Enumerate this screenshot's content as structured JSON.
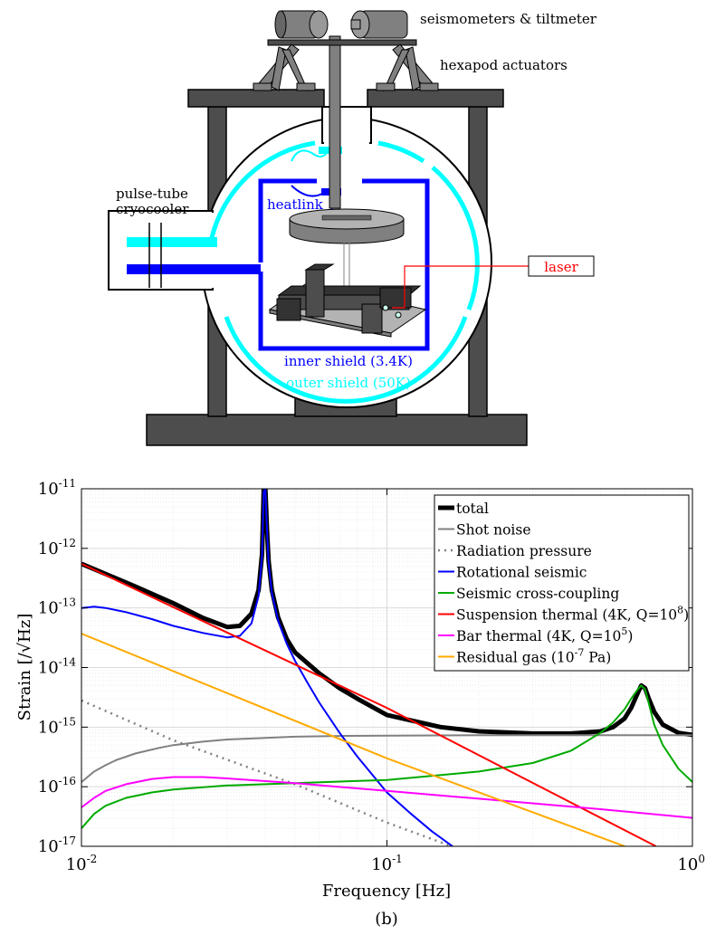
{
  "diagram": {
    "labels": {
      "seismometers": "seismometers & tiltmeter",
      "hexapod": "hexapod actuators",
      "cryocooler_line1": "pulse-tube",
      "cryocooler_line2": "cryocooler",
      "heatlink": "heatlink",
      "laser": "laser",
      "inner_shield": "inner shield (3.4K)",
      "outer_shield": "outer shield (50K)"
    },
    "colors": {
      "inner_shield": "#0000ff",
      "outer_shield": "#00ffff",
      "laser": "#ff0000",
      "frame": "#4d4d4d"
    }
  },
  "chart_data": {
    "type": "line",
    "xscale": "log",
    "yscale": "log",
    "xlabel": "Frequency [Hz]",
    "ylabel": "Strain [/√Hz]",
    "xlim": [
      0.01,
      1
    ],
    "ylim": [
      1e-17,
      1e-11
    ],
    "xticks": [
      0.01,
      0.1,
      1
    ],
    "xtick_labels": [
      {
        "base": "10",
        "exp": "-2"
      },
      {
        "base": "10",
        "exp": "-1"
      },
      {
        "base": "10",
        "exp": "0"
      }
    ],
    "yticks": [
      1e-17,
      1e-16,
      1e-15,
      1e-14,
      1e-13,
      1e-12,
      1e-11
    ],
    "ytick_labels": [
      {
        "base": "10",
        "exp": "-17"
      },
      {
        "base": "10",
        "exp": "-16"
      },
      {
        "base": "10",
        "exp": "-15"
      },
      {
        "base": "10",
        "exp": "-14"
      },
      {
        "base": "10",
        "exp": "-13"
      },
      {
        "base": "10",
        "exp": "-12"
      },
      {
        "base": "10",
        "exp": "-11"
      }
    ],
    "grid": true,
    "legend_position": "top-right",
    "caption": "(b)",
    "series": [
      {
        "name": "total",
        "color": "#000000",
        "width": 5,
        "dash": "",
        "x": [
          0.01,
          0.015,
          0.02,
          0.025,
          0.03,
          0.033,
          0.036,
          0.038,
          0.039,
          0.0395,
          0.04,
          0.0405,
          0.041,
          0.042,
          0.044,
          0.047,
          0.05,
          0.06,
          0.07,
          0.08,
          0.1,
          0.15,
          0.2,
          0.3,
          0.4,
          0.5,
          0.55,
          0.6,
          0.63,
          0.66,
          0.68,
          0.7,
          0.72,
          0.75,
          0.8,
          0.9,
          1.0
        ],
        "y": [
          5.5e-13,
          2.3e-13,
          1.2e-13,
          6.8e-14,
          4.8e-14,
          5e-14,
          8e-14,
          2e-13,
          8e-13,
          1e-11,
          1e-11,
          2e-12,
          6e-13,
          2e-13,
          7e-14,
          3e-14,
          1.8e-14,
          8e-15,
          4.5e-15,
          3e-15,
          1.6e-15,
          1e-15,
          8.5e-16,
          7.8e-16,
          7.8e-16,
          8.5e-16,
          1e-15,
          1.4e-15,
          2.1e-15,
          3.6e-15,
          5e-15,
          4.5e-15,
          3e-15,
          1.8e-15,
          1.1e-15,
          8e-16,
          7.4e-16
        ]
      },
      {
        "name": "Shot noise",
        "color": "#808080",
        "width": 2,
        "dash": "",
        "x": [
          0.01,
          0.011,
          0.012,
          0.013,
          0.015,
          0.018,
          0.02,
          0.025,
          0.03,
          0.04,
          0.05,
          0.07,
          0.1,
          0.2,
          0.5,
          1.0
        ],
        "y": [
          1.2e-16,
          1.8e-16,
          2.3e-16,
          2.8e-16,
          3.6e-16,
          4.5e-16,
          5e-16,
          5.7e-16,
          6.2e-16,
          6.6e-16,
          6.9e-16,
          7.1e-16,
          7.2e-16,
          7.3e-16,
          7.3e-16,
          7.3e-16
        ]
      },
      {
        "name": "Radiation pressure",
        "color": "#808080",
        "width": 2.5,
        "dash": "2,5",
        "x": [
          0.01,
          0.02,
          0.05,
          0.1,
          0.163
        ],
        "y": [
          2.8e-15,
          6e-16,
          1.1e-16,
          2.5e-17,
          1e-17
        ]
      },
      {
        "name": "Rotational seismic",
        "color": "#0000ff",
        "width": 2,
        "dash": "",
        "x": [
          0.01,
          0.011,
          0.012,
          0.014,
          0.017,
          0.02,
          0.025,
          0.03,
          0.033,
          0.036,
          0.038,
          0.039,
          0.0395,
          0.04,
          0.0405,
          0.041,
          0.042,
          0.044,
          0.047,
          0.05,
          0.055,
          0.06,
          0.07,
          0.08,
          0.1,
          0.12,
          0.14,
          0.164
        ],
        "y": [
          1e-13,
          1.05e-13,
          1e-13,
          8.5e-14,
          6.5e-14,
          5e-14,
          3.8e-14,
          3.2e-14,
          3.4e-14,
          5.5e-14,
          1.6e-13,
          7.5e-13,
          9e-12,
          1e-11,
          2e-12,
          5.5e-13,
          1.8e-13,
          6.2e-14,
          2.5e-14,
          1.3e-14,
          5.5e-15,
          2.6e-15,
          8e-16,
          3.2e-16,
          8e-17,
          3.5e-17,
          1.8e-17,
          1e-17
        ]
      },
      {
        "name": "Seismic cross-coupling",
        "color": "#00aa00",
        "width": 2,
        "dash": "",
        "x": [
          0.01,
          0.011,
          0.012,
          0.014,
          0.017,
          0.02,
          0.03,
          0.05,
          0.1,
          0.2,
          0.3,
          0.4,
          0.5,
          0.55,
          0.6,
          0.63,
          0.66,
          0.68,
          0.7,
          0.72,
          0.75,
          0.8,
          0.9,
          1.0
        ],
        "y": [
          2e-17,
          3.5e-17,
          4.8e-17,
          6.5e-17,
          8e-17,
          9e-17,
          1.05e-16,
          1.15e-16,
          1.3e-16,
          1.8e-16,
          2.5e-16,
          4e-16,
          8e-16,
          1.2e-15,
          2e-15,
          3e-15,
          4.2e-15,
          5e-15,
          4.3e-15,
          2.5e-15,
          1.1e-15,
          5e-16,
          2e-16,
          1.2e-16
        ]
      },
      {
        "name": "Suspension thermal (4K, Q=10^8)",
        "color": "#ff0000",
        "width": 2,
        "dash": "",
        "x": [
          0.01,
          0.1,
          0.76
        ],
        "y": [
          5.5e-13,
          2.1e-15,
          1e-17
        ]
      },
      {
        "name": "Bar thermal (4K, Q=10^5)",
        "color": "#ff00ff",
        "width": 2,
        "dash": "",
        "x": [
          0.01,
          0.011,
          0.012,
          0.014,
          0.017,
          0.02,
          0.025,
          0.03,
          0.05,
          0.1,
          0.2,
          0.5,
          1.0
        ],
        "y": [
          4.5e-17,
          6.5e-17,
          8.5e-17,
          1.1e-16,
          1.35e-16,
          1.45e-16,
          1.45e-16,
          1.38e-16,
          1.15e-16,
          8.5e-17,
          6.3e-17,
          4.2e-17,
          3e-17
        ]
      },
      {
        "name": "Residual gas (10^-7 Pa)",
        "color": "#ffaa00",
        "width": 2,
        "dash": "",
        "x": [
          0.01,
          0.1,
          0.6
        ],
        "y": [
          3.7e-14,
          3e-16,
          1e-17
        ]
      }
    ],
    "legend": [
      {
        "text": "total",
        "color": "#000000",
        "width": 5,
        "dash": ""
      },
      {
        "text": "Shot noise",
        "color": "#808080",
        "width": 2,
        "dash": ""
      },
      {
        "text": "Radiation pressure",
        "color": "#808080",
        "width": 2.5,
        "dash": "2,5"
      },
      {
        "text": "Rotational seismic",
        "color": "#0000ff",
        "width": 2,
        "dash": ""
      },
      {
        "text": "Seismic cross-coupling",
        "color": "#00aa00",
        "width": 2,
        "dash": ""
      },
      {
        "text": "Suspension thermal (4K, Q=10",
        "sup": "8",
        "tail": ")",
        "color": "#ff0000",
        "width": 2,
        "dash": ""
      },
      {
        "text": "Bar thermal (4K, Q=10",
        "sup": "5",
        "tail": ")",
        "color": "#ff00ff",
        "width": 2,
        "dash": ""
      },
      {
        "text": "Residual gas (10",
        "sup": "-7",
        "tail": " Pa)",
        "color": "#ffaa00",
        "width": 2,
        "dash": ""
      }
    ]
  }
}
